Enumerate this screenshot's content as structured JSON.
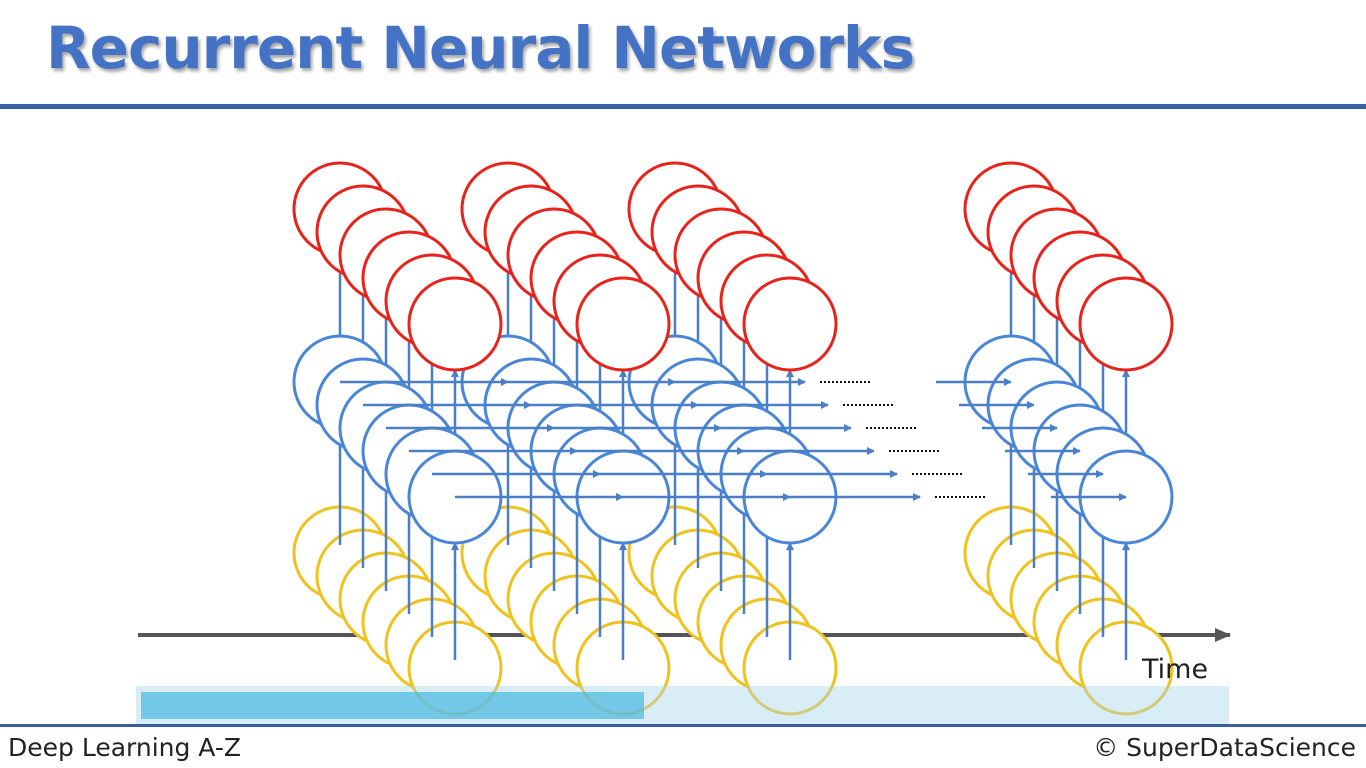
{
  "slide": {
    "title": "Recurrent Neural Networks",
    "footer_left": "Deep Learning A-Z",
    "footer_right": "© SuperDataScience"
  },
  "diagram": {
    "axis_label": "Time",
    "timestep_count_shown": 4,
    "layers": [
      "output",
      "hidden",
      "input"
    ],
    "colors": {
      "output": "#e8231c",
      "hidden": "#4a86d8",
      "input": "#f0c21d",
      "arrow": "#4a7fc8",
      "axis": "#555555",
      "title": "#4472c4"
    }
  },
  "progress": {
    "fraction": 0.46
  }
}
